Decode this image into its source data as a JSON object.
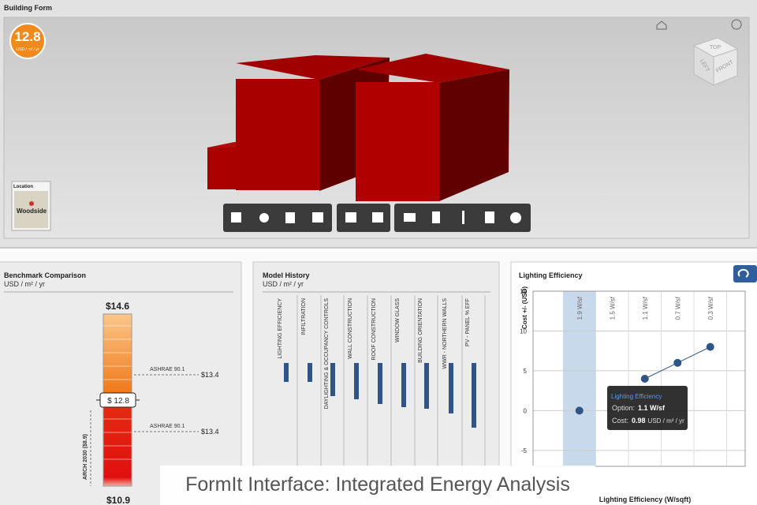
{
  "caption": "FormIt Interface: Integrated Energy Analysis",
  "building_form": {
    "title": "Building Form",
    "score": "12.8",
    "score_unit": "USD / m² / yr",
    "location_label": "Location",
    "location_name": "Woodside",
    "viewcube": [
      "TOP",
      "LEFT",
      "FRONT"
    ]
  },
  "benchmark": {
    "title": "Benchmark Comparison",
    "unit": "USD / m² / yr",
    "top": "$14.6",
    "current": "$ 12.8",
    "bottom": "$10.9",
    "markers": [
      {
        "label": "ASHRAE 90.1",
        "value": "$13.4"
      },
      {
        "label": "ASHRAE 90.1",
        "value": "$13.4"
      }
    ],
    "target": "ARCH 2030 ($8.9)"
  },
  "model_history": {
    "title": "Model History",
    "unit": "USD / m² / yr",
    "steps": [
      "LIGHTING EFFICIENCY",
      "INFILTRATION",
      "DAYLIGHTING & OCCUPANCY CONTROLS",
      "WALL CONSTRUCTION",
      "ROOF CONSTRUCTION",
      "WINDOW GLASS",
      "BUILDING ORIENTATION",
      "WWR - NORTHERN WALLS",
      "PV - PANEL % EFF"
    ]
  },
  "chart_data": {
    "type": "line",
    "title": "Lighting Efficiency",
    "y_label": "Cost +/- (USD)",
    "x_label": "Lighting Efficiency (W/sqft)",
    "categories": [
      "1.9 W/sf",
      "1.5 W/sf",
      "1.1 W/sf",
      "0.7 W/sf",
      "0.3 W/sf"
    ],
    "values": [
      0,
      null,
      4,
      6,
      8
    ],
    "color": "#2f5587",
    "ylim": [
      -7,
      15
    ],
    "yticks": [
      -5,
      0,
      5,
      10,
      15
    ],
    "grid": true,
    "tooltip": {
      "title": "Lighting Efficiency",
      "option_label": "Option:",
      "option": "1.1 W/sf",
      "cost_label": "Cost:",
      "cost": "0.98",
      "cost_unit": "USD / m² / yr"
    }
  }
}
